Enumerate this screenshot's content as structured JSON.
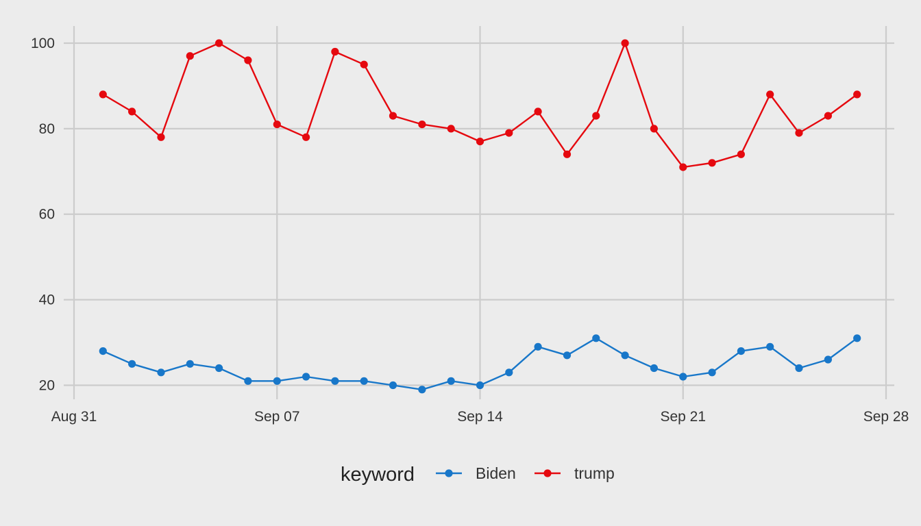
{
  "chart_data": {
    "type": "line",
    "title": "",
    "xlabel": "",
    "ylabel": "",
    "x": [
      "2020-09-01",
      "2020-09-02",
      "2020-09-03",
      "2020-09-04",
      "2020-09-05",
      "2020-09-06",
      "2020-09-07",
      "2020-09-08",
      "2020-09-09",
      "2020-09-10",
      "2020-09-11",
      "2020-09-12",
      "2020-09-13",
      "2020-09-14",
      "2020-09-15",
      "2020-09-16",
      "2020-09-17",
      "2020-09-18",
      "2020-09-19",
      "2020-09-20",
      "2020-09-21",
      "2020-09-22",
      "2020-09-23",
      "2020-09-24",
      "2020-09-25",
      "2020-09-26",
      "2020-09-27"
    ],
    "x_ticks": [
      {
        "date": "2020-08-31",
        "label": "Aug 31"
      },
      {
        "date": "2020-09-07",
        "label": "Sep 07"
      },
      {
        "date": "2020-09-14",
        "label": "Sep 14"
      },
      {
        "date": "2020-09-21",
        "label": "Sep 21"
      },
      {
        "date": "2020-09-28",
        "label": "Sep 28"
      }
    ],
    "y_ticks": [
      20,
      40,
      60,
      80,
      100
    ],
    "xlim": [
      "2020-08-31",
      "2020-09-28"
    ],
    "ylim": [
      18,
      104
    ],
    "grid": true,
    "legend": {
      "title": "keyword",
      "position": "bottom"
    },
    "series": [
      {
        "name": "Biden",
        "color": "#1877c9",
        "values": [
          28,
          25,
          23,
          25,
          24,
          21,
          21,
          22,
          21,
          21,
          20,
          19,
          21,
          20,
          23,
          29,
          27,
          31,
          27,
          24,
          22,
          23,
          28,
          29,
          24,
          26,
          31
        ]
      },
      {
        "name": "trump",
        "color": "#e5090f",
        "values": [
          88,
          84,
          78,
          97,
          100,
          96,
          81,
          78,
          98,
          95,
          83,
          81,
          80,
          77,
          79,
          84,
          74,
          83,
          100,
          80,
          71,
          72,
          74,
          88,
          79,
          83,
          88
        ]
      }
    ]
  }
}
